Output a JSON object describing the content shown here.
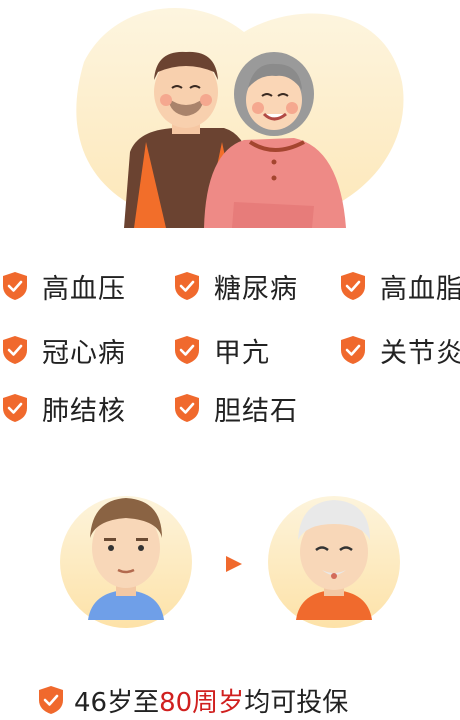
{
  "conditions": [
    {
      "label": "高血压"
    },
    {
      "label": "糖尿病"
    },
    {
      "label": "高血脂"
    },
    {
      "label": "冠心病"
    },
    {
      "label": "甲亢"
    },
    {
      "label": "关节炎"
    },
    {
      "label": "肺结核"
    },
    {
      "label": "胆结石"
    }
  ],
  "age_note": {
    "prefix": "46岁至",
    "highlight": "80周岁",
    "suffix": "均可投保"
  },
  "icons": {
    "bullet": "shield-check-icon",
    "arrow": "play-arrow-icon"
  },
  "colors": {
    "accent": "#f0692d",
    "highlight": "#d0201f",
    "blob": "#fdf0cf"
  }
}
